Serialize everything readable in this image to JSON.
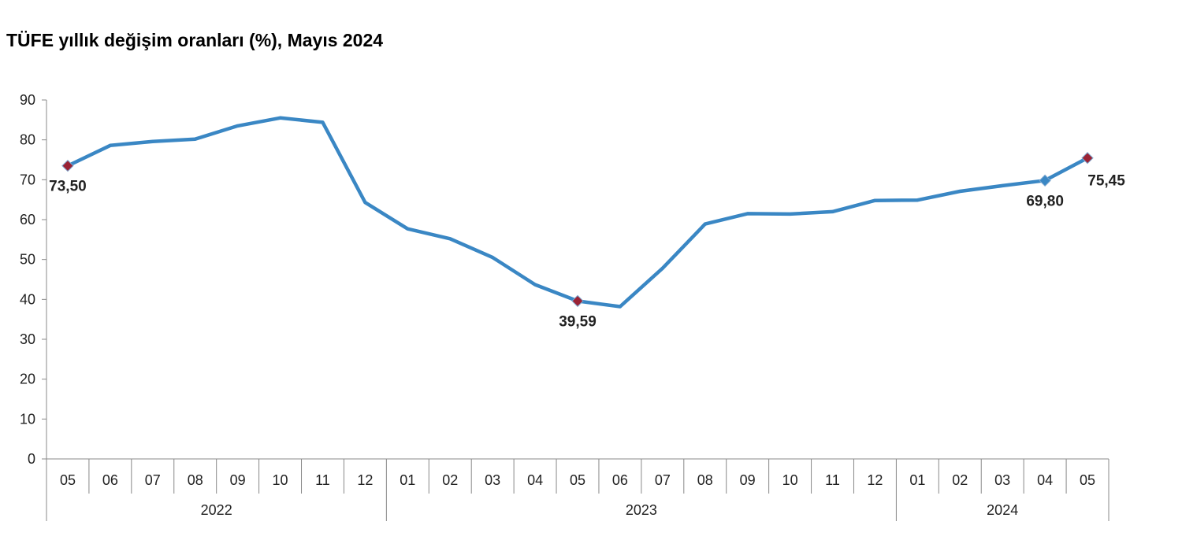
{
  "chart_data": {
    "type": "line",
    "title": "TÜFE yıllık değişim oranları (%), Mayıs 2024",
    "xlabel": "",
    "ylabel": "",
    "ylim": [
      0,
      90
    ],
    "yticks": [
      "0",
      "10",
      "20",
      "30",
      "40",
      "50",
      "60",
      "70",
      "80",
      "90"
    ],
    "categories": [
      "05",
      "06",
      "07",
      "08",
      "09",
      "10",
      "11",
      "12",
      "01",
      "02",
      "03",
      "04",
      "05",
      "06",
      "07",
      "08",
      "09",
      "10",
      "11",
      "12",
      "01",
      "02",
      "03",
      "04",
      "05"
    ],
    "year_groups": [
      {
        "label": "2022",
        "count": 8
      },
      {
        "label": "2023",
        "count": 12
      },
      {
        "label": "2024",
        "count": 5
      }
    ],
    "series": [
      {
        "name": "TÜFE yıllık değişim",
        "color": "#3a87c4",
        "values": [
          73.5,
          78.6,
          79.6,
          80.2,
          83.5,
          85.5,
          84.4,
          64.3,
          57.7,
          55.2,
          50.5,
          43.7,
          39.59,
          38.2,
          47.8,
          58.9,
          61.5,
          61.4,
          62.0,
          64.8,
          64.9,
          67.1,
          68.5,
          69.8,
          75.45
        ]
      }
    ],
    "highlight_points": [
      {
        "index": 0,
        "label": "73,50",
        "marker_color": "#9b2335"
      },
      {
        "index": 12,
        "label": "39,59",
        "marker_color": "#9b2335"
      },
      {
        "index": 23,
        "label": "69,80",
        "marker_color": "#3a87c4"
      },
      {
        "index": 24,
        "label": "75,45",
        "marker_color": "#9b2335"
      }
    ]
  }
}
